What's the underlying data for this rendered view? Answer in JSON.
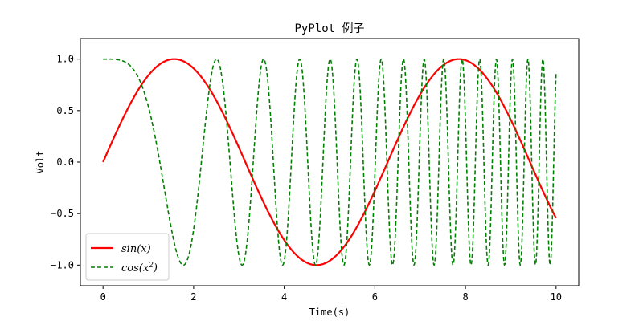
{
  "chart_data": {
    "type": "line",
    "title": "PyPlot 例子",
    "xlabel": "Time(s)",
    "ylabel": "Volt",
    "xlim": [
      -0.5,
      10.5
    ],
    "ylim": [
      -1.2,
      1.2
    ],
    "xticks": [
      0,
      2,
      4,
      6,
      8,
      10
    ],
    "xtick_labels": [
      "0",
      "2",
      "4",
      "6",
      "8",
      "10"
    ],
    "yticks": [
      -1.0,
      -0.5,
      0.0,
      0.5,
      1.0
    ],
    "ytick_labels": [
      "−1.0",
      "−0.5",
      "0.0",
      "0.5",
      "1.0"
    ],
    "grid": false,
    "legend_position": "lower-left",
    "x": [
      0,
      0.5,
      1,
      1.5,
      2,
      2.5,
      3,
      3.5,
      4,
      4.5,
      5,
      5.5,
      6,
      6.5,
      7,
      7.5,
      8,
      8.5,
      9,
      9.5,
      10
    ],
    "series": [
      {
        "name": "sin(x)",
        "function": "sin(x)",
        "color": "#ff0000",
        "style": "solid",
        "values": [
          0,
          0.479,
          0.841,
          0.997,
          0.909,
          0.598,
          0.141,
          -0.351,
          -0.757,
          -0.978,
          -0.959,
          -0.706,
          -0.279,
          0.215,
          0.657,
          0.938,
          0.989,
          0.798,
          0.412,
          -0.075,
          -0.544
        ]
      },
      {
        "name": "cos(x²)",
        "function": "cos(x^2)",
        "color": "#008000",
        "style": "dashed",
        "values": [
          1,
          0.969,
          0.54,
          -0.628,
          -0.654,
          0.999,
          -0.911,
          0.964,
          -0.958,
          0.893,
          0.991,
          0.99,
          -0.991,
          0.889,
          0.3,
          0.999,
          -0.392,
          -0.57,
          0.77,
          0.994,
          0.862
        ]
      }
    ],
    "legend": [
      {
        "label_main": "cos(x",
        "label_sup": "2",
        "label_end": ")"
      }
    ]
  }
}
